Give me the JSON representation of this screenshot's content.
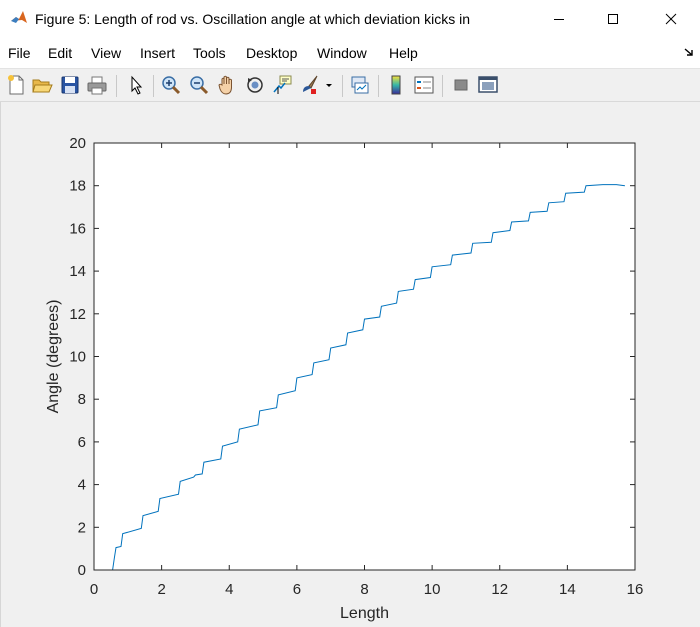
{
  "window": {
    "title": "Figure 5: Length of rod vs. Oscillation angle at which deviation kicks in",
    "app_icon": "matlab-icon",
    "controls": [
      "minimize-icon",
      "maximize-icon",
      "close-icon"
    ]
  },
  "menu": {
    "items": [
      "File",
      "Edit",
      "View",
      "Insert",
      "Tools",
      "Desktop",
      "Window",
      "Help"
    ]
  },
  "toolbar": {
    "buttons": [
      "new-figure-icon",
      "open-file-icon",
      "save-icon",
      "print-icon",
      "select-arrow-icon",
      "zoom-in-icon",
      "zoom-out-icon",
      "pan-hand-icon",
      "rotate-3d-icon",
      "data-cursor-icon",
      "brush-icon",
      "brush-dropdown-icon",
      "link-plot-icon",
      "colorbar-icon",
      "legend-icon",
      "hide-plot-tools-icon",
      "show-plot-tools-icon"
    ]
  },
  "colors": {
    "series": "#0072bd",
    "figure_background": "#f0f0f0",
    "axes_background": "#ffffff"
  },
  "chart_data": {
    "type": "line",
    "title": "",
    "xlabel": "Length",
    "ylabel": "Angle (degrees)",
    "xlim": [
      0,
      16
    ],
    "ylim": [
      0,
      20
    ],
    "xticks": [
      0,
      2,
      4,
      6,
      8,
      10,
      12,
      14,
      16
    ],
    "yticks": [
      0,
      2,
      4,
      6,
      8,
      10,
      12,
      14,
      16,
      18,
      20
    ],
    "grid": false,
    "legend": "none",
    "series": [
      {
        "x": [
          0.05,
          0.55,
          0.6,
          0.65,
          0.8,
          0.85,
          1.4,
          1.45,
          1.9,
          1.95,
          2.5,
          2.55,
          2.95,
          3.0,
          3.2,
          3.25,
          3.75,
          3.8,
          4.25,
          4.3,
          4.85,
          4.9,
          5.4,
          5.45,
          5.95,
          6.0,
          6.45,
          6.5,
          6.95,
          7.0,
          7.45,
          7.5,
          7.95,
          8.0,
          8.45,
          8.5,
          8.95,
          9.0,
          9.45,
          9.5,
          9.95,
          10.0,
          10.55,
          10.6,
          11.15,
          11.2,
          11.75,
          11.8,
          12.3,
          12.35,
          12.85,
          12.9,
          13.4,
          13.45,
          13.9,
          13.95,
          14.5,
          14.55,
          15.05,
          15.1,
          15.4,
          15.45,
          15.7
        ],
        "y": [
          0.0,
          0.0,
          0.55,
          1.05,
          1.1,
          1.7,
          1.95,
          2.55,
          2.75,
          3.35,
          3.55,
          4.15,
          4.35,
          4.45,
          4.5,
          5.05,
          5.2,
          5.8,
          6.0,
          6.6,
          6.8,
          7.45,
          7.6,
          8.2,
          8.4,
          9.0,
          9.15,
          9.7,
          9.85,
          10.4,
          10.55,
          11.1,
          11.25,
          11.75,
          11.85,
          12.35,
          12.5,
          13.05,
          13.15,
          13.6,
          13.7,
          14.2,
          14.3,
          14.75,
          14.85,
          15.3,
          15.35,
          15.8,
          15.9,
          16.3,
          16.35,
          16.75,
          16.8,
          17.2,
          17.25,
          17.65,
          17.7,
          18.0,
          18.05,
          18.05,
          18.05,
          18.05,
          18.0
        ]
      }
    ]
  }
}
